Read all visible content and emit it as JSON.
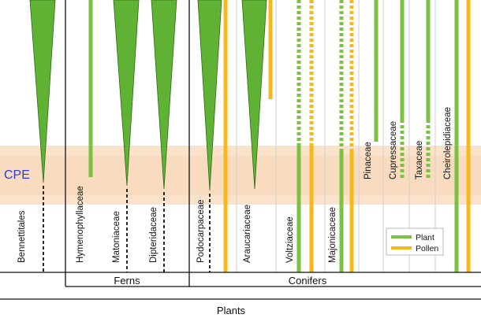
{
  "colors": {
    "green": "#7cc242",
    "yellow": "#f7b819",
    "fern_green": "#5fb234",
    "cpe_band": "#fbe3cb",
    "cpe_text": "#2b3cd6",
    "line": "#111111",
    "thin_line": "#cfcfcf"
  },
  "cpe_label": "CPE",
  "taxa": [
    {
      "name": "Bennettitales",
      "record": "spindle_then_dashed"
    },
    {
      "name": "Hymenophyllaceae",
      "record": "plant_ends_within_cpe"
    },
    {
      "name": "Matoniaceae",
      "record": "spindle_then_dashed"
    },
    {
      "name": "Dipteridaceae",
      "record": "spindle_then_dashed"
    },
    {
      "name": "Podocarpaceae",
      "record": "spindle_then_dashed_plus_pollen"
    },
    {
      "name": "Araucariaceae",
      "record": "spindle_plus_pollen_ends_before_cpe"
    },
    {
      "name": "Voltziaceae",
      "record": "plant_and_pollen_dashed_then_solid"
    },
    {
      "name": "Majonicaceae",
      "record": "plant_and_pollen_dashed_then_solid"
    },
    {
      "name": "Pinaceae",
      "record": "plant_ends_before_cpe"
    },
    {
      "name": "Cupressaceae",
      "record": "plant_solid_then_dashed"
    },
    {
      "name": "Taxaceae",
      "record": "plant_solid_then_dashed"
    },
    {
      "name": "Cheirolepidiaceae",
      "record": "plant_and_pollen_full"
    }
  ],
  "groups": {
    "ferns": "Ferns",
    "conifers": "Conifers",
    "plants": "Plants"
  },
  "legend": {
    "plant": "Plant",
    "pollen": "Pollen"
  }
}
